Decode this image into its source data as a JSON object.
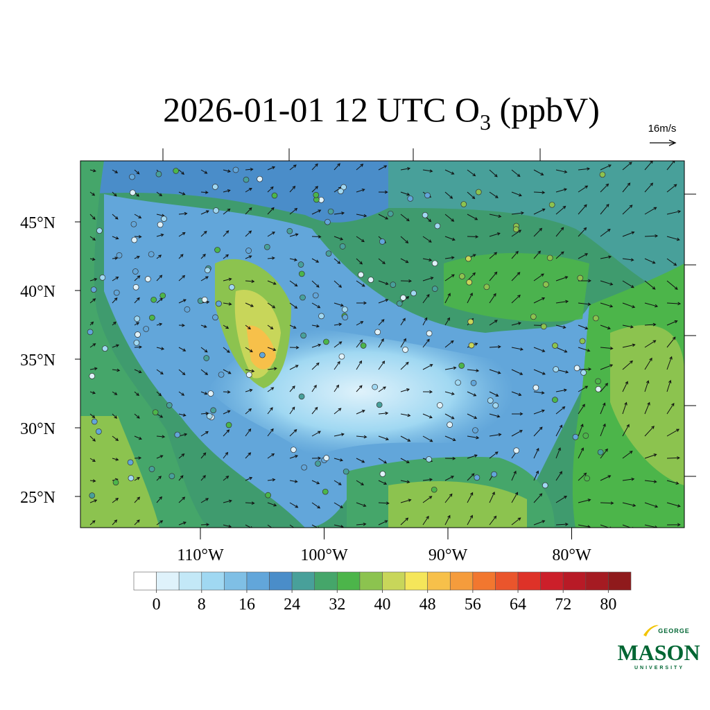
{
  "title": {
    "main": "2026-01-01 12 UTC O",
    "subscript": "3",
    "tail": " (ppbV)"
  },
  "reference_vector": {
    "label": "16m/s"
  },
  "map": {
    "lat_ticks": [
      {
        "value": 45,
        "label": "45°N"
      },
      {
        "value": 40,
        "label": "40°N"
      },
      {
        "value": 35,
        "label": "35°N"
      },
      {
        "value": 30,
        "label": "30°N"
      },
      {
        "value": 25,
        "label": "25°N"
      }
    ],
    "lon_ticks": [
      {
        "value": -110,
        "label": "110°W"
      },
      {
        "value": -100,
        "label": "100°W"
      },
      {
        "value": -90,
        "label": "90°W"
      },
      {
        "value": -80,
        "label": "80°W"
      }
    ]
  },
  "colorbar": {
    "range": [
      -4,
      84
    ],
    "colors": [
      "#ffffff",
      "#dff2fb",
      "#c3e8f7",
      "#a0d8f2",
      "#7fbfe5",
      "#62a6da",
      "#4a8dc9",
      "#48a09a",
      "#45a66a",
      "#4cb54a",
      "#8cc34f",
      "#c8d65a",
      "#f5e65a",
      "#f7c04a",
      "#f59c3c",
      "#f2772f",
      "#ea552c",
      "#de3228",
      "#cc1f2a",
      "#b81a26",
      "#a51b22",
      "#8f1a1c"
    ],
    "ticks": [
      0,
      8,
      16,
      24,
      32,
      40,
      48,
      56,
      64,
      72,
      80
    ]
  },
  "logo": {
    "top": "GEORGE",
    "main": "MASON",
    "bottom": "UNIVERSITY"
  }
}
